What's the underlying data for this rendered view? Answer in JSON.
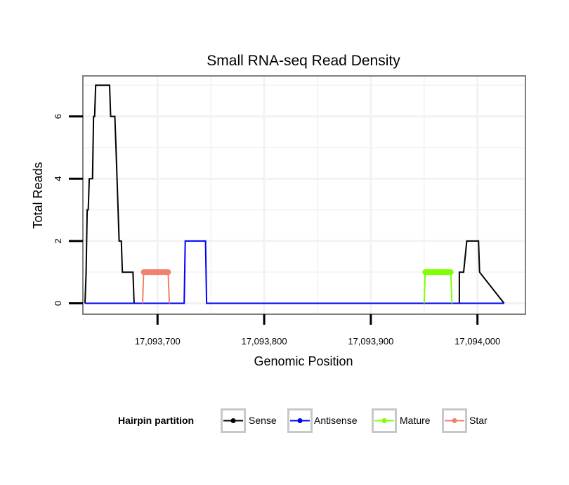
{
  "chart_data": {
    "type": "line",
    "title": "Small RNA-seq Read Density",
    "xlabel": "Genomic Position",
    "ylabel": "Total Reads",
    "xlim": [
      17093630,
      17094045
    ],
    "ylim": [
      -0.35,
      7.3
    ],
    "x_ticks": [
      17093700,
      17093800,
      17093900,
      17094000
    ],
    "x_tick_labels": [
      "17,093,700",
      "17,093,800",
      "17,093,900",
      "17,094,000"
    ],
    "y_ticks": [
      0,
      2,
      4,
      6
    ],
    "y_tick_labels": [
      "0",
      "2",
      "4",
      "6"
    ],
    "grid": true,
    "legend": {
      "title": "Hairpin partition",
      "position": "bottom",
      "entries": [
        "Sense",
        "Antisense",
        "Mature",
        "Star"
      ]
    },
    "series": [
      {
        "name": "Sense",
        "color": "#000000",
        "width": 2,
        "x": [
          17093632,
          17093633,
          17093634,
          17093635,
          17093636,
          17093637,
          17093638,
          17093639,
          17093640,
          17093641,
          17093642,
          17093644,
          17093646,
          17093650,
          17093655,
          17093656,
          17093659,
          17093660,
          17093661,
          17093662,
          17093663,
          17093664,
          17093666,
          17093667,
          17093668,
          17093677,
          17093678
        ],
        "values": [
          0,
          1,
          3,
          3,
          4,
          4,
          4,
          4,
          6,
          6,
          7,
          7,
          7,
          7,
          7,
          6,
          6,
          6,
          5,
          4,
          3,
          2,
          2,
          1,
          1,
          1,
          0
        ]
      },
      {
        "name": "Sense",
        "color": "#000000",
        "width": 2,
        "x": [
          17093950,
          17093975,
          17093978,
          17093983,
          17093983,
          17093987,
          17093990,
          17094001,
          17094002,
          17094025
        ],
        "values": [
          0,
          0,
          0,
          0,
          1,
          1,
          2,
          2,
          1,
          0
        ]
      },
      {
        "name": "Antisense",
        "color": "#0000ff",
        "width": 2,
        "x": [
          17093632,
          17093725,
          17093726,
          17093745,
          17093746,
          17093950,
          17094025
        ],
        "values": [
          0,
          0,
          2,
          2,
          0,
          0,
          0
        ]
      },
      {
        "name": "Star",
        "color": "#f08070",
        "width": 2,
        "x": [
          17093686,
          17093687,
          17093710,
          17093711
        ],
        "values": [
          0,
          1,
          1,
          0
        ]
      },
      {
        "name": "Mature",
        "color": "#7fff00",
        "width": 2,
        "x": [
          17093950,
          17093951,
          17093975,
          17093976
        ],
        "values": [
          0,
          1,
          1,
          0
        ]
      }
    ],
    "highlights": [
      {
        "name": "Star",
        "color": "#f08070",
        "x": [
          17093687,
          17093710
        ],
        "y": 1
      },
      {
        "name": "Mature",
        "color": "#7fff00",
        "x": [
          17093951,
          17093975
        ],
        "y": 1
      }
    ]
  },
  "colors": {
    "Sense": "#000000",
    "Antisense": "#0000ff",
    "Mature": "#7fff00",
    "Star": "#f08070",
    "panel_border": "#808080",
    "grid": "#f2f2f2"
  }
}
